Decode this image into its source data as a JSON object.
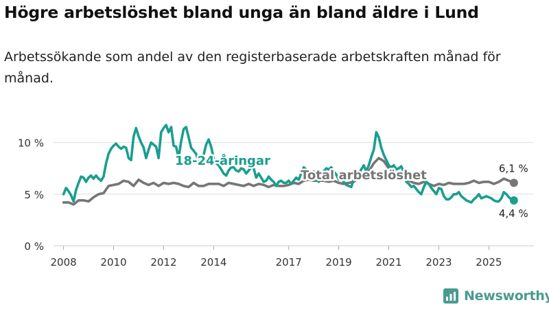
{
  "title": "Högre arbetslöshet bland unga än bland äldre i Lund",
  "subtitle": "Arbetssökande som andel av den registerbaserade arbetskraften månad för månad.",
  "brand": {
    "name": "Newsworthy",
    "icon": "newsworthy-logo-icon",
    "color": "#4a9a90"
  },
  "colors": {
    "youth": "#1a9e8f",
    "total": "#767676",
    "grid": "#dddddd"
  },
  "chart_data": {
    "type": "line",
    "title": "Högre arbetslöshet bland unga än bland äldre i Lund",
    "xlabel": "",
    "ylabel": "",
    "ylim": [
      0,
      12.5
    ],
    "xlim": [
      2007.6,
      2026.8
    ],
    "y_ticks": [
      0,
      5,
      10
    ],
    "y_tick_labels": [
      "0 %",
      "5 %",
      "10 %"
    ],
    "x_ticks": [
      2008,
      2010,
      2012,
      2014,
      2017,
      2019,
      2021,
      2023,
      2025
    ],
    "x_tick_labels": [
      "2008",
      "2010",
      "2012",
      "2014",
      "2017",
      "2019",
      "2021",
      "2023",
      "2025"
    ],
    "grid": true,
    "series": [
      {
        "name": "18-24-åringar",
        "label": "18-24-åringar",
        "end_label": "4,4 %",
        "points": [
          [
            2008.0,
            5.0
          ],
          [
            2008.1,
            5.6
          ],
          [
            2008.2,
            5.3
          ],
          [
            2008.3,
            4.9
          ],
          [
            2008.4,
            4.3
          ],
          [
            2008.5,
            5.4
          ],
          [
            2008.6,
            6.1
          ],
          [
            2008.7,
            6.7
          ],
          [
            2008.8,
            6.6
          ],
          [
            2008.9,
            6.2
          ],
          [
            2009.0,
            6.6
          ],
          [
            2009.1,
            6.8
          ],
          [
            2009.2,
            6.5
          ],
          [
            2009.3,
            6.8
          ],
          [
            2009.4,
            6.5
          ],
          [
            2009.5,
            6.3
          ],
          [
            2009.6,
            6.7
          ],
          [
            2009.7,
            8.0
          ],
          [
            2009.8,
            8.9
          ],
          [
            2009.9,
            9.4
          ],
          [
            2010.0,
            9.7
          ],
          [
            2010.1,
            9.9
          ],
          [
            2010.2,
            9.6
          ],
          [
            2010.3,
            9.4
          ],
          [
            2010.4,
            9.6
          ],
          [
            2010.5,
            9.5
          ],
          [
            2010.6,
            8.5
          ],
          [
            2010.7,
            8.3
          ],
          [
            2010.8,
            10.6
          ],
          [
            2010.9,
            11.4
          ],
          [
            2011.0,
            10.6
          ],
          [
            2011.1,
            10.0
          ],
          [
            2011.2,
            9.5
          ],
          [
            2011.3,
            8.5
          ],
          [
            2011.4,
            9.3
          ],
          [
            2011.5,
            10.0
          ],
          [
            2011.6,
            9.8
          ],
          [
            2011.7,
            9.6
          ],
          [
            2011.8,
            8.5
          ],
          [
            2011.9,
            11.0
          ],
          [
            2012.0,
            11.4
          ],
          [
            2012.1,
            11.7
          ],
          [
            2012.2,
            11.0
          ],
          [
            2012.3,
            11.5
          ],
          [
            2012.4,
            9.7
          ],
          [
            2012.5,
            9.6
          ],
          [
            2012.6,
            8.5
          ],
          [
            2012.7,
            10.1
          ],
          [
            2012.8,
            11.3
          ],
          [
            2012.9,
            11.5
          ],
          [
            2013.0,
            10.5
          ],
          [
            2013.1,
            9.5
          ],
          [
            2013.2,
            9.2
          ],
          [
            2013.3,
            8.9
          ],
          [
            2013.4,
            8.0
          ],
          [
            2013.5,
            8.4
          ],
          [
            2013.6,
            8.8
          ],
          [
            2013.7,
            9.8
          ],
          [
            2013.8,
            10.3
          ],
          [
            2013.9,
            9.6
          ],
          [
            2014.0,
            8.5
          ],
          [
            2014.1,
            8.0
          ],
          [
            2014.2,
            7.8
          ],
          [
            2014.3,
            7.4
          ],
          [
            2014.4,
            7.0
          ],
          [
            2014.5,
            6.8
          ],
          [
            2014.6,
            7.3
          ],
          [
            2014.7,
            7.6
          ],
          [
            2014.8,
            7.6
          ],
          [
            2014.9,
            7.3
          ],
          [
            2015.0,
            7.2
          ],
          [
            2015.1,
            7.5
          ],
          [
            2015.2,
            7.4
          ],
          [
            2015.3,
            7.0
          ],
          [
            2015.4,
            7.3
          ],
          [
            2015.5,
            7.6
          ],
          [
            2015.6,
            7.5
          ],
          [
            2015.7,
            6.6
          ],
          [
            2015.8,
            7.0
          ],
          [
            2015.9,
            6.6
          ],
          [
            2016.0,
            6.2
          ],
          [
            2016.1,
            6.3
          ],
          [
            2016.2,
            6.7
          ],
          [
            2016.3,
            6.4
          ],
          [
            2016.4,
            6.2
          ],
          [
            2016.5,
            5.8
          ],
          [
            2016.6,
            6.2
          ],
          [
            2016.7,
            6.3
          ],
          [
            2016.8,
            6.1
          ],
          [
            2016.9,
            6.1
          ],
          [
            2017.0,
            6.3
          ],
          [
            2017.1,
            6.0
          ],
          [
            2017.2,
            6.3
          ],
          [
            2017.3,
            6.6
          ],
          [
            2017.4,
            6.4
          ],
          [
            2017.5,
            7.0
          ],
          [
            2017.6,
            7.6
          ],
          [
            2017.7,
            7.4
          ],
          [
            2017.8,
            7.2
          ],
          [
            2017.9,
            7.0
          ],
          [
            2018.0,
            7.2
          ],
          [
            2018.1,
            6.6
          ],
          [
            2018.2,
            6.2
          ],
          [
            2018.3,
            6.7
          ],
          [
            2018.4,
            7.2
          ],
          [
            2018.5,
            7.5
          ],
          [
            2018.6,
            7.4
          ],
          [
            2018.7,
            7.6
          ],
          [
            2018.8,
            7.2
          ],
          [
            2018.9,
            6.9
          ],
          [
            2019.0,
            6.4
          ],
          [
            2019.1,
            6.5
          ],
          [
            2019.2,
            6.2
          ],
          [
            2019.3,
            5.9
          ],
          [
            2019.4,
            5.8
          ],
          [
            2019.5,
            5.7
          ],
          [
            2019.6,
            6.5
          ],
          [
            2019.7,
            7.0
          ],
          [
            2019.8,
            6.9
          ],
          [
            2019.9,
            7.4
          ],
          [
            2020.0,
            7.8
          ],
          [
            2020.1,
            7.2
          ],
          [
            2020.2,
            7.8
          ],
          [
            2020.3,
            8.6
          ],
          [
            2020.4,
            9.3
          ],
          [
            2020.5,
            11.0
          ],
          [
            2020.6,
            10.5
          ],
          [
            2020.7,
            9.5
          ],
          [
            2020.8,
            8.8
          ],
          [
            2020.9,
            8.3
          ],
          [
            2021.0,
            7.8
          ],
          [
            2021.1,
            7.6
          ],
          [
            2021.2,
            7.8
          ],
          [
            2021.3,
            7.4
          ],
          [
            2021.4,
            7.5
          ],
          [
            2021.5,
            7.7
          ],
          [
            2021.6,
            7.1
          ],
          [
            2021.7,
            6.2
          ],
          [
            2021.8,
            6.0
          ],
          [
            2021.9,
            5.7
          ],
          [
            2022.0,
            5.8
          ],
          [
            2022.1,
            5.5
          ],
          [
            2022.2,
            5.2
          ],
          [
            2022.3,
            5.0
          ],
          [
            2022.4,
            5.7
          ],
          [
            2022.5,
            6.2
          ],
          [
            2022.6,
            6.0
          ],
          [
            2022.7,
            5.6
          ],
          [
            2022.8,
            5.3
          ],
          [
            2022.9,
            5.0
          ],
          [
            2023.0,
            5.6
          ],
          [
            2023.1,
            5.5
          ],
          [
            2023.2,
            4.8
          ],
          [
            2023.3,
            4.5
          ],
          [
            2023.4,
            4.5
          ],
          [
            2023.5,
            4.7
          ],
          [
            2023.6,
            5.0
          ],
          [
            2023.7,
            5.0
          ],
          [
            2023.8,
            5.2
          ],
          [
            2023.9,
            4.8
          ],
          [
            2024.0,
            4.6
          ],
          [
            2024.1,
            4.4
          ],
          [
            2024.2,
            4.3
          ],
          [
            2024.3,
            4.2
          ],
          [
            2024.4,
            4.5
          ],
          [
            2024.5,
            4.7
          ],
          [
            2024.6,
            5.0
          ],
          [
            2024.7,
            4.6
          ],
          [
            2024.8,
            4.7
          ],
          [
            2024.9,
            4.8
          ],
          [
            2025.0,
            4.7
          ],
          [
            2025.1,
            4.6
          ],
          [
            2025.2,
            4.4
          ],
          [
            2025.3,
            4.3
          ],
          [
            2025.4,
            4.3
          ],
          [
            2025.5,
            4.6
          ],
          [
            2025.6,
            5.2
          ],
          [
            2025.7,
            5.0
          ],
          [
            2025.8,
            4.7
          ],
          [
            2025.9,
            4.5
          ],
          [
            2026.0,
            4.4
          ]
        ]
      },
      {
        "name": "Total arbetslöshet",
        "label": "Total arbetslöshet",
        "end_label": "6,1 %",
        "points": [
          [
            2008.0,
            4.2
          ],
          [
            2008.2,
            4.2
          ],
          [
            2008.4,
            4.0
          ],
          [
            2008.6,
            4.4
          ],
          [
            2008.8,
            4.4
          ],
          [
            2009.0,
            4.3
          ],
          [
            2009.2,
            4.7
          ],
          [
            2009.4,
            5.0
          ],
          [
            2009.6,
            5.1
          ],
          [
            2009.8,
            5.8
          ],
          [
            2010.0,
            5.9
          ],
          [
            2010.2,
            6.0
          ],
          [
            2010.4,
            6.3
          ],
          [
            2010.6,
            6.2
          ],
          [
            2010.8,
            5.8
          ],
          [
            2011.0,
            6.4
          ],
          [
            2011.2,
            6.1
          ],
          [
            2011.4,
            5.9
          ],
          [
            2011.6,
            6.1
          ],
          [
            2011.8,
            5.8
          ],
          [
            2012.0,
            6.1
          ],
          [
            2012.2,
            6.0
          ],
          [
            2012.4,
            6.1
          ],
          [
            2012.6,
            6.0
          ],
          [
            2012.8,
            5.8
          ],
          [
            2013.0,
            5.7
          ],
          [
            2013.2,
            6.1
          ],
          [
            2013.4,
            5.8
          ],
          [
            2013.6,
            5.8
          ],
          [
            2013.8,
            6.0
          ],
          [
            2014.0,
            6.0
          ],
          [
            2014.2,
            6.0
          ],
          [
            2014.4,
            5.8
          ],
          [
            2014.6,
            6.1
          ],
          [
            2014.8,
            6.0
          ],
          [
            2015.0,
            5.9
          ],
          [
            2015.2,
            5.8
          ],
          [
            2015.4,
            6.0
          ],
          [
            2015.6,
            5.8
          ],
          [
            2015.8,
            6.0
          ],
          [
            2016.0,
            5.9
          ],
          [
            2016.2,
            5.7
          ],
          [
            2016.4,
            5.9
          ],
          [
            2016.6,
            5.8
          ],
          [
            2016.8,
            5.8
          ],
          [
            2017.0,
            5.9
          ],
          [
            2017.2,
            6.1
          ],
          [
            2017.4,
            6.0
          ],
          [
            2017.6,
            6.3
          ],
          [
            2017.8,
            6.4
          ],
          [
            2018.0,
            6.3
          ],
          [
            2018.2,
            6.3
          ],
          [
            2018.4,
            6.3
          ],
          [
            2018.6,
            6.2
          ],
          [
            2018.8,
            6.3
          ],
          [
            2019.0,
            6.1
          ],
          [
            2019.2,
            6.0
          ],
          [
            2019.4,
            6.1
          ],
          [
            2019.6,
            6.2
          ],
          [
            2019.8,
            6.6
          ],
          [
            2020.0,
            6.8
          ],
          [
            2020.2,
            7.2
          ],
          [
            2020.4,
            8.0
          ],
          [
            2020.6,
            8.5
          ],
          [
            2020.8,
            8.2
          ],
          [
            2021.0,
            7.5
          ],
          [
            2021.2,
            7.2
          ],
          [
            2021.4,
            6.8
          ],
          [
            2021.6,
            6.5
          ],
          [
            2021.8,
            6.3
          ],
          [
            2022.0,
            6.1
          ],
          [
            2022.2,
            6.0
          ],
          [
            2022.4,
            6.2
          ],
          [
            2022.6,
            6.0
          ],
          [
            2022.8,
            5.8
          ],
          [
            2023.0,
            6.0
          ],
          [
            2023.2,
            5.9
          ],
          [
            2023.4,
            6.1
          ],
          [
            2023.6,
            6.0
          ],
          [
            2023.8,
            6.0
          ],
          [
            2024.0,
            6.0
          ],
          [
            2024.2,
            6.1
          ],
          [
            2024.4,
            6.3
          ],
          [
            2024.6,
            6.1
          ],
          [
            2024.8,
            6.2
          ],
          [
            2025.0,
            6.2
          ],
          [
            2025.2,
            6.0
          ],
          [
            2025.4,
            6.2
          ],
          [
            2025.6,
            6.5
          ],
          [
            2025.8,
            6.3
          ],
          [
            2026.0,
            6.1
          ]
        ]
      }
    ]
  }
}
